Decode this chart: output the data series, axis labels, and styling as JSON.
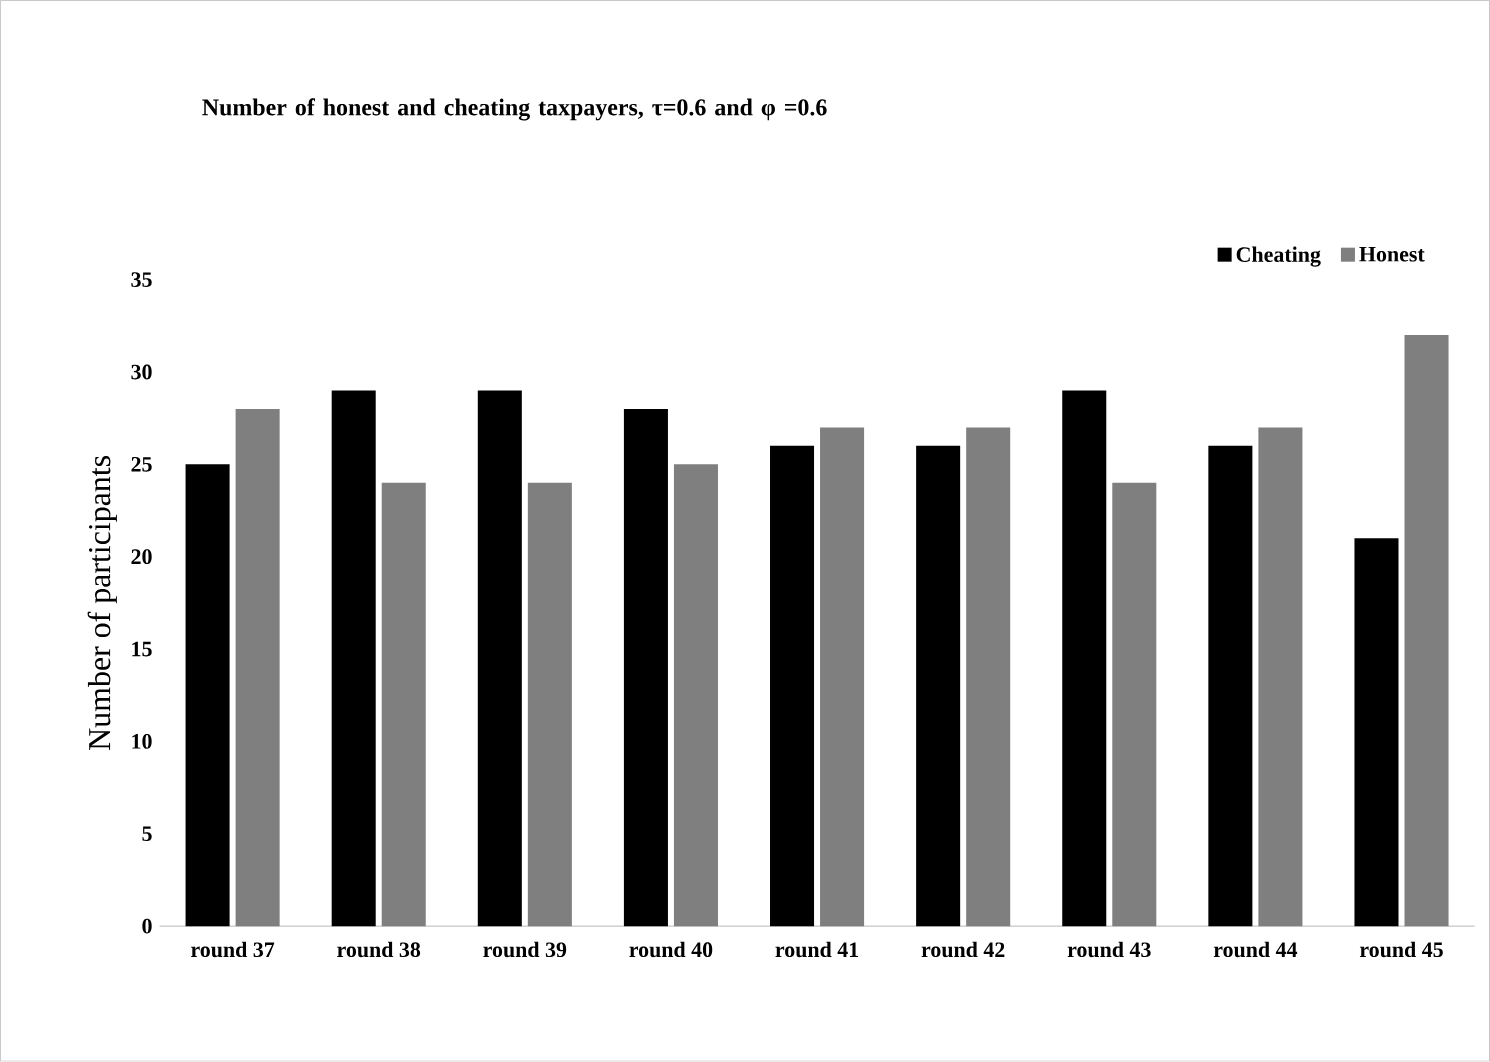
{
  "chart_data": {
    "type": "bar",
    "title": "Number of honest and cheating taxpayers, **τ**=0.6 and **φ** =0.6",
    "ylabel": "Number of participants",
    "categories": [
      "round 37",
      "round 38",
      "round 39",
      "round 40",
      "round 41",
      "round 42",
      "round 43",
      "round 44",
      "round 45"
    ],
    "series": [
      {
        "name": "Cheating",
        "color": "#000000",
        "values": [
          25,
          29,
          29,
          28,
          26,
          26,
          29,
          26,
          21
        ]
      },
      {
        "name": "Honest",
        "color": "#7f7f7f",
        "values": [
          28,
          24,
          24,
          25,
          27,
          27,
          24,
          27,
          32
        ]
      }
    ],
    "ylim": [
      0,
      35
    ],
    "yticks": [
      0,
      5,
      10,
      15,
      20,
      25,
      30,
      35
    ],
    "grid": false,
    "legend": "top right"
  }
}
